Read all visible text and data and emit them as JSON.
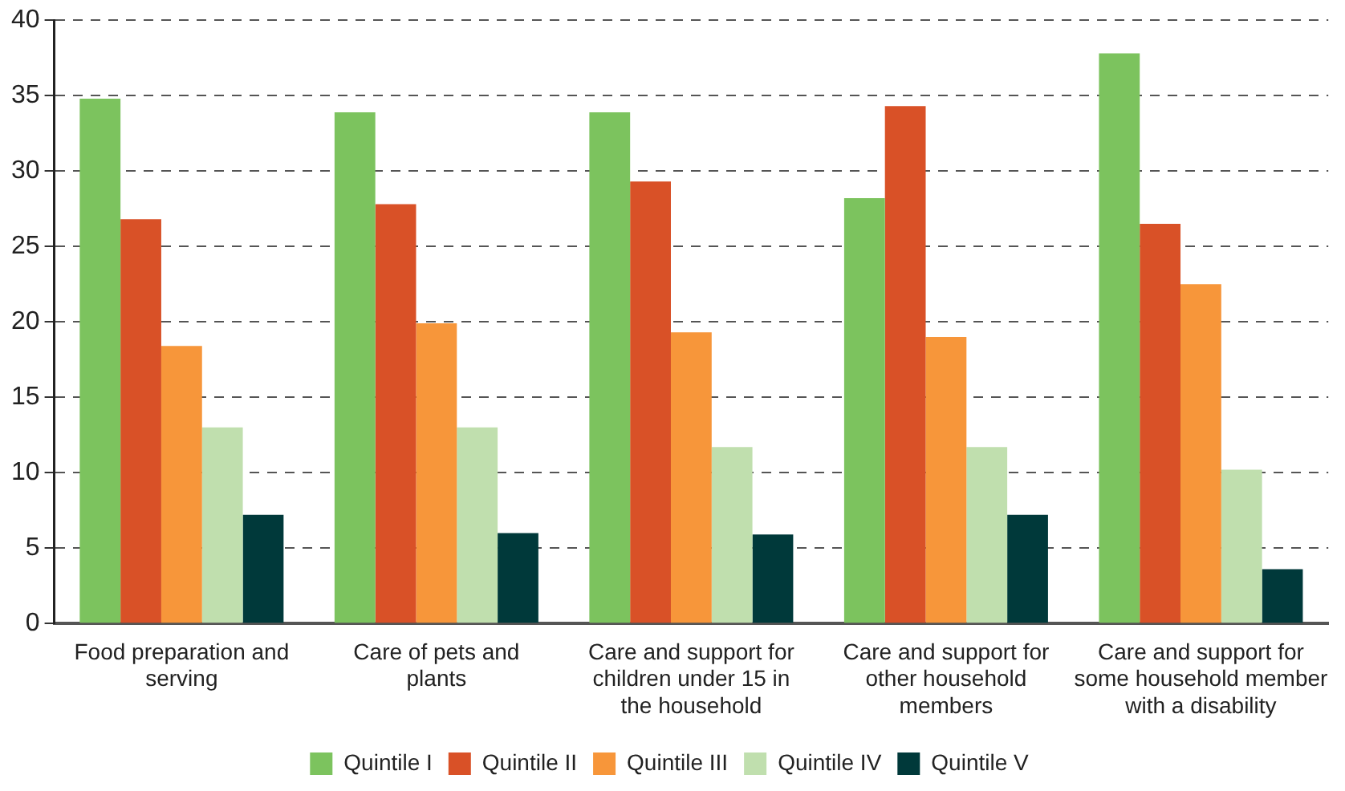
{
  "chart_data": {
    "type": "bar",
    "categories": [
      "Food preparation and serving",
      "Care of pets and plants",
      "Care and support for children under 15 in the household",
      "Care and support for other household members",
      "Care and support for some household member with a disability"
    ],
    "series": [
      {
        "name": "Quintile I",
        "color": "#7cc35e",
        "values": [
          34.8,
          33.9,
          33.9,
          28.2,
          37.8
        ]
      },
      {
        "name": "Quintile II",
        "color": "#d95127",
        "values": [
          26.8,
          27.8,
          29.3,
          34.3,
          26.5
        ]
      },
      {
        "name": "Quintile III",
        "color": "#f7963a",
        "values": [
          18.4,
          19.9,
          19.3,
          19.0,
          22.5
        ]
      },
      {
        "name": "Quintile IV",
        "color": "#c0dfae",
        "values": [
          13.0,
          13.0,
          11.7,
          11.7,
          10.2
        ]
      },
      {
        "name": "Quintile V",
        "color": "#00393a",
        "values": [
          7.2,
          6.0,
          5.9,
          7.2,
          3.6
        ]
      }
    ],
    "ylim": [
      0,
      40
    ],
    "yticks": [
      0,
      5,
      10,
      15,
      20,
      25,
      30,
      35,
      40
    ],
    "grid": "y",
    "legend": "bottom"
  }
}
